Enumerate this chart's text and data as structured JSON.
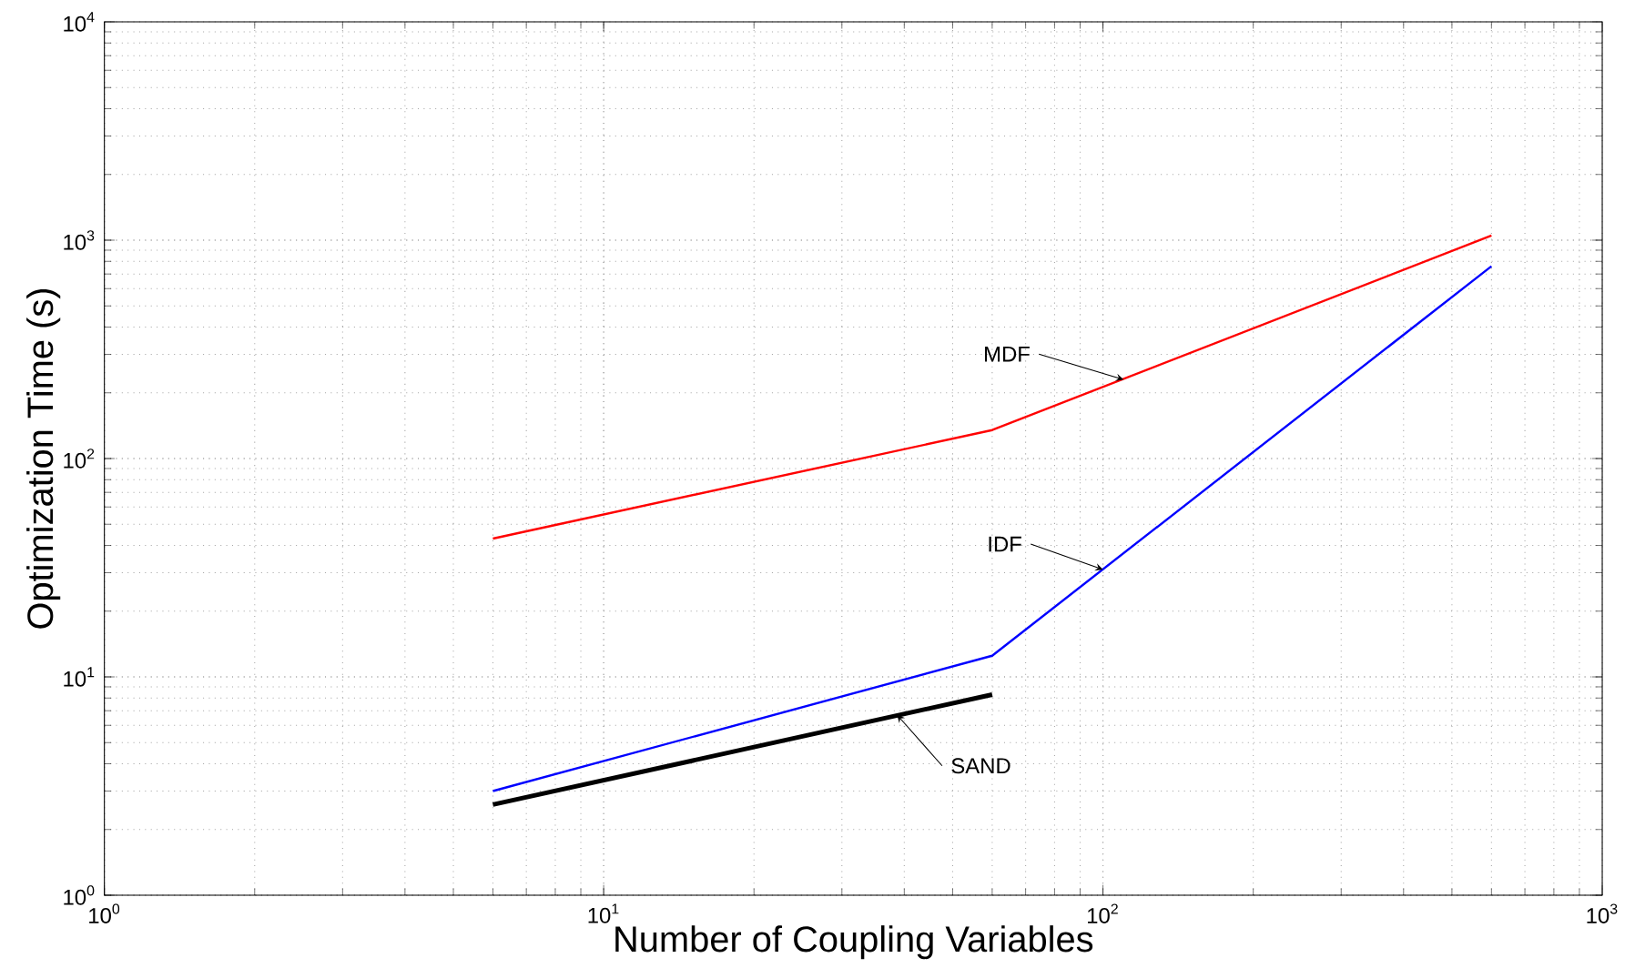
{
  "chart_data": {
    "type": "line",
    "xlabel": "Number of Coupling Variables",
    "ylabel": "Optimization Time (s)",
    "log": "xy",
    "grid": true,
    "marker": "none",
    "line_style": "solid",
    "xlim": [
      1,
      1000
    ],
    "ylim": [
      1,
      10000
    ],
    "xticks": [
      {
        "value": 1,
        "label": "10$^{0}$"
      },
      {
        "value": 10,
        "label": "10$^{1}$"
      },
      {
        "value": 100,
        "label": "10$^{2}$"
      },
      {
        "value": 1000,
        "label": "10$^{3}$"
      }
    ],
    "yticks": [
      {
        "value": 1,
        "label": "10$^{0}$"
      },
      {
        "value": 10,
        "label": "10$^{1}$"
      },
      {
        "value": 100,
        "label": "10$^{2}$"
      },
      {
        "value": 1000,
        "label": "10$^{3}$"
      },
      {
        "value": 10000,
        "label": "10$^{4}$"
      }
    ],
    "series": [
      {
        "color": "#ff0000",
        "x": [
          6,
          60,
          600
        ],
        "values": [
          43,
          135,
          1050
        ]
      },
      {
        "color": "#0000ff",
        "x": [
          6,
          60,
          600
        ],
        "values": [
          3.0,
          12.5,
          760
        ]
      },
      {
        "color": "#000000",
        "x": [
          6,
          60
        ],
        "values": [
          2.6,
          8.3
        ]
      }
    ],
    "annotations": [
      {
        "text": "MDF",
        "x": 110,
        "y": 230
      },
      {
        "text": "IDF",
        "x": 100,
        "y": 31
      },
      {
        "text": "SAND",
        "x": 38.7,
        "y": 6.7
      }
    ]
  }
}
